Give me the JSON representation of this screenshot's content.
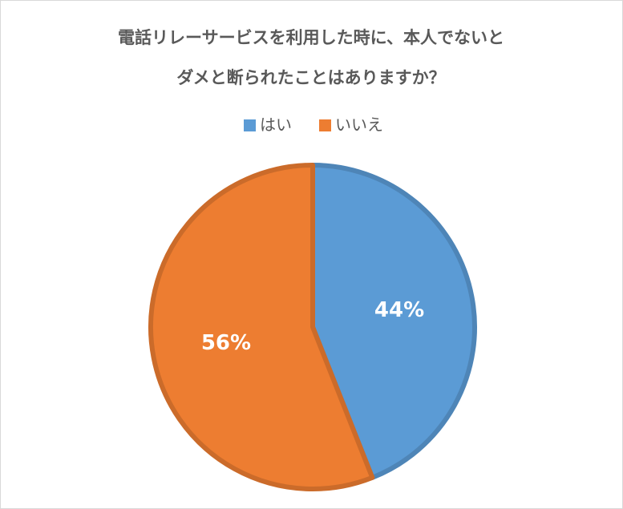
{
  "chart_data": {
    "type": "pie",
    "title": [
      "電話リレーサービスを利用した時に、本人でないと",
      "ダメと断られたことはありますか？"
    ],
    "categories": [
      "はい",
      "いいえ"
    ],
    "values": [
      44,
      56
    ],
    "value_labels": [
      "44%",
      "56%"
    ],
    "colors": [
      "#5b9bd5",
      "#ed7d31"
    ],
    "legend": "top"
  }
}
